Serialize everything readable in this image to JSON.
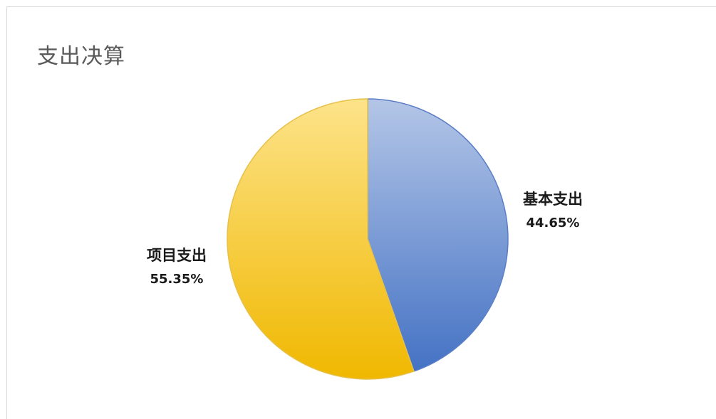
{
  "chart_data": {
    "type": "pie",
    "title": "支出决算",
    "slices": [
      {
        "name": "基本支出",
        "value": 44.65,
        "value_label": "44.65%",
        "color": "#4472c4"
      },
      {
        "name": "项目支出",
        "value": 55.35,
        "value_label": "55.35%",
        "color": "#f2b705"
      }
    ],
    "legend": "none",
    "data_labels": "outside, category name and percentage"
  }
}
